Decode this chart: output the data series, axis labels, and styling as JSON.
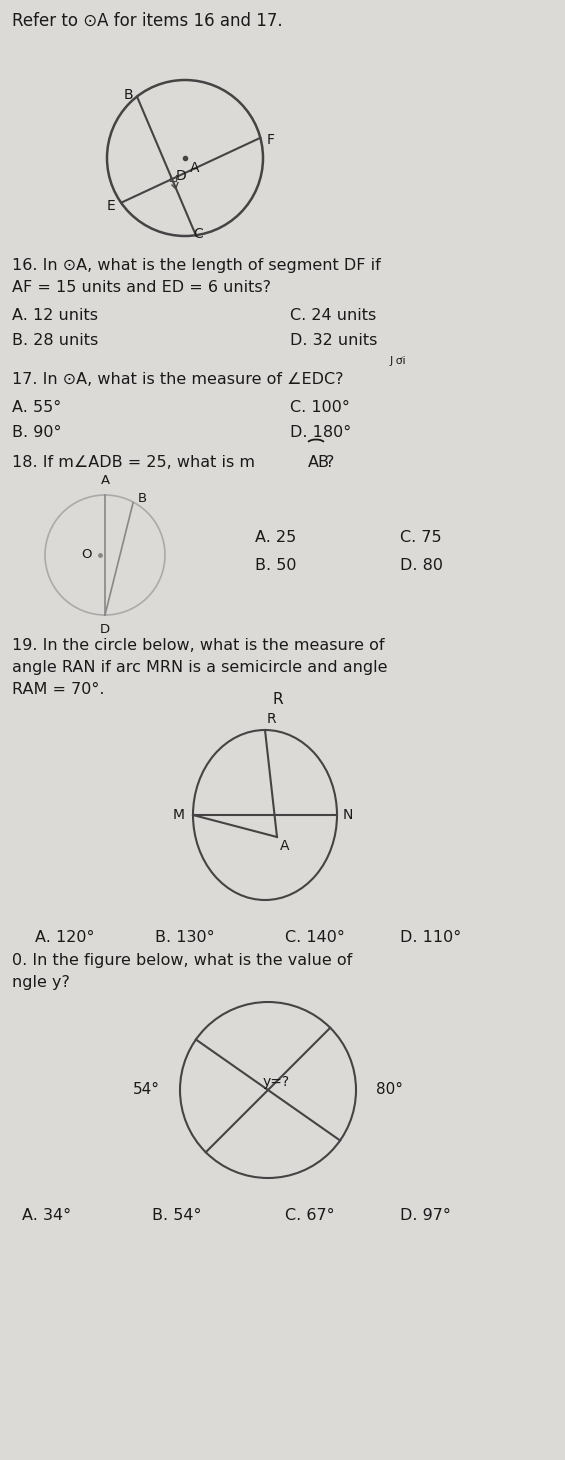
{
  "bg_color": "#dcdad7",
  "text_color": "#1a1a1a",
  "circle_color": "#444444",
  "line_color": "#444444",
  "title_text": "Refer to ⊙A for items 16 and 17.",
  "q16_line1": "16. In ⊙A, what is the length of segment DF if",
  "q16_line2": "AF = 15 units and ED = 6 units?",
  "q16_A": "A. 12 units",
  "q16_B": "B. 28 units",
  "q16_C": "C. 24 units",
  "q16_D": "D. 32 units",
  "q16_note": "J ơi",
  "q17_line1": "17. In ⊙A, what is the measure of ∠EDC?",
  "q17_A": "A. 55°",
  "q17_B": "B. 90°",
  "q17_C": "C. 100°",
  "q17_D": "D. 180°",
  "q18_line1": "18. If m∠ADB = 25, what is m ",
  "q18_arc_text": "AB",
  "q18_rest": "?",
  "q18_A": "A. 25",
  "q18_B": "B. 50",
  "q18_C": "C. 75",
  "q18_D": "D. 80",
  "q19_line1": "19. In the circle below, what is the measure of",
  "q19_line2": "angle RAN if arc MRN is a semicircle and angle",
  "q19_line3": "RAM = 70°.",
  "q19_R": "R",
  "q19_A_label": "A",
  "q19_M": "M",
  "q19_N": "N",
  "q19_A": "A. 120°",
  "q19_B": "B. 130°",
  "q19_C": "C. 140°",
  "q19_D": "D. 110°",
  "q20_line1": "0. In the figure below, what is the value of",
  "q20_line2": "ngle y?",
  "q20_54": "54°",
  "q20_80": "80°",
  "q20_y": "y=?",
  "q20_A": "A. 34°",
  "q20_B": "B. 54°",
  "q20_C": "C. 67°",
  "q20_D": "D. 97°"
}
